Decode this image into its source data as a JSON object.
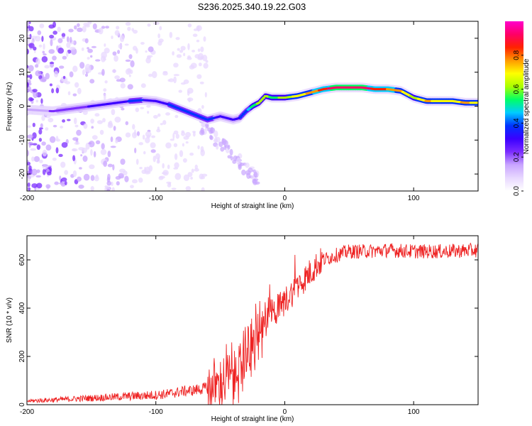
{
  "title": "S236.2025.340.19.22.G03",
  "chart_data": [
    {
      "type": "heatmap",
      "name": "spectrogram",
      "xlabel": "Height of straight line (km)",
      "ylabel": "Frequency (Hz)",
      "xlim": [
        -200,
        150
      ],
      "ylim": [
        -25,
        25
      ],
      "xticks": [
        -200,
        -100,
        0,
        100
      ],
      "yticks": [
        -20,
        -10,
        0,
        10,
        20
      ],
      "colorbar": {
        "label": "Normalized spectral amplitude",
        "range": [
          0,
          1
        ],
        "ticks": [
          "0.0",
          "0.2",
          "0.4",
          "0.6",
          "0.8"
        ],
        "colormap": [
          "#ffffff",
          "#e8d8ff",
          "#c9a6ff",
          "#7b2cff",
          "#3a00ff",
          "#0033ff",
          "#00ccff",
          "#00ff66",
          "#aaff00",
          "#ffff00",
          "#ff9900",
          "#ff2200",
          "#ff0066",
          "#ff00cc"
        ]
      },
      "ridge": {
        "x": [
          -200,
          -180,
          -160,
          -140,
          -120,
          -110,
          -100,
          -90,
          -80,
          -70,
          -60,
          -50,
          -40,
          -35,
          -30,
          -25,
          -20,
          -15,
          -10,
          0,
          10,
          20,
          30,
          40,
          50,
          60,
          70,
          80,
          90,
          100,
          110,
          120,
          130,
          140,
          150
        ],
        "freq": [
          -1,
          -1.5,
          -0.5,
          0.5,
          1.5,
          1.8,
          1.5,
          0.5,
          -1,
          -2.5,
          -4,
          -3,
          -4,
          -3.5,
          -1.5,
          0,
          1,
          3,
          2.5,
          2.5,
          3,
          4,
          5,
          5.5,
          5.5,
          5.5,
          5,
          5,
          4.5,
          2.5,
          1.5,
          1.5,
          1.5,
          1,
          1
        ],
        "amplitude": [
          0.15,
          0.2,
          0.25,
          0.3,
          0.35,
          0.35,
          0.3,
          0.35,
          0.35,
          0.35,
          0.4,
          0.3,
          0.3,
          0.35,
          0.4,
          0.55,
          0.6,
          0.6,
          0.55,
          0.6,
          0.7,
          0.75,
          0.85,
          0.95,
          0.95,
          0.95,
          0.85,
          0.8,
          0.75,
          0.6,
          0.75,
          0.7,
          0.7,
          0.75,
          0.7
        ]
      }
    },
    {
      "type": "line",
      "name": "snr",
      "xlabel": "Height of straight line (km)",
      "ylabel": "SNR (10 * v/v)",
      "xlim": [
        -200,
        150
      ],
      "ylim": [
        0,
        700
      ],
      "xticks": [
        -200,
        -100,
        0,
        100
      ],
      "yticks": [
        0,
        200,
        400,
        600
      ],
      "color": "#ee2222",
      "series": [
        {
          "name": "SNR",
          "x": [
            -200,
            -180,
            -160,
            -140,
            -120,
            -100,
            -90,
            -80,
            -70,
            -60,
            -50,
            -40,
            -35,
            -30,
            -25,
            -20,
            -15,
            -10,
            -5,
            0,
            5,
            10,
            15,
            20,
            25,
            30,
            40,
            50,
            60,
            80,
            100,
            120,
            150
          ],
          "y": [
            15,
            20,
            25,
            30,
            35,
            40,
            45,
            55,
            60,
            70,
            90,
            120,
            160,
            200,
            240,
            280,
            330,
            380,
            400,
            430,
            460,
            490,
            520,
            550,
            580,
            600,
            620,
            635,
            635,
            640,
            635,
            635,
            640
          ]
        }
      ]
    }
  ]
}
